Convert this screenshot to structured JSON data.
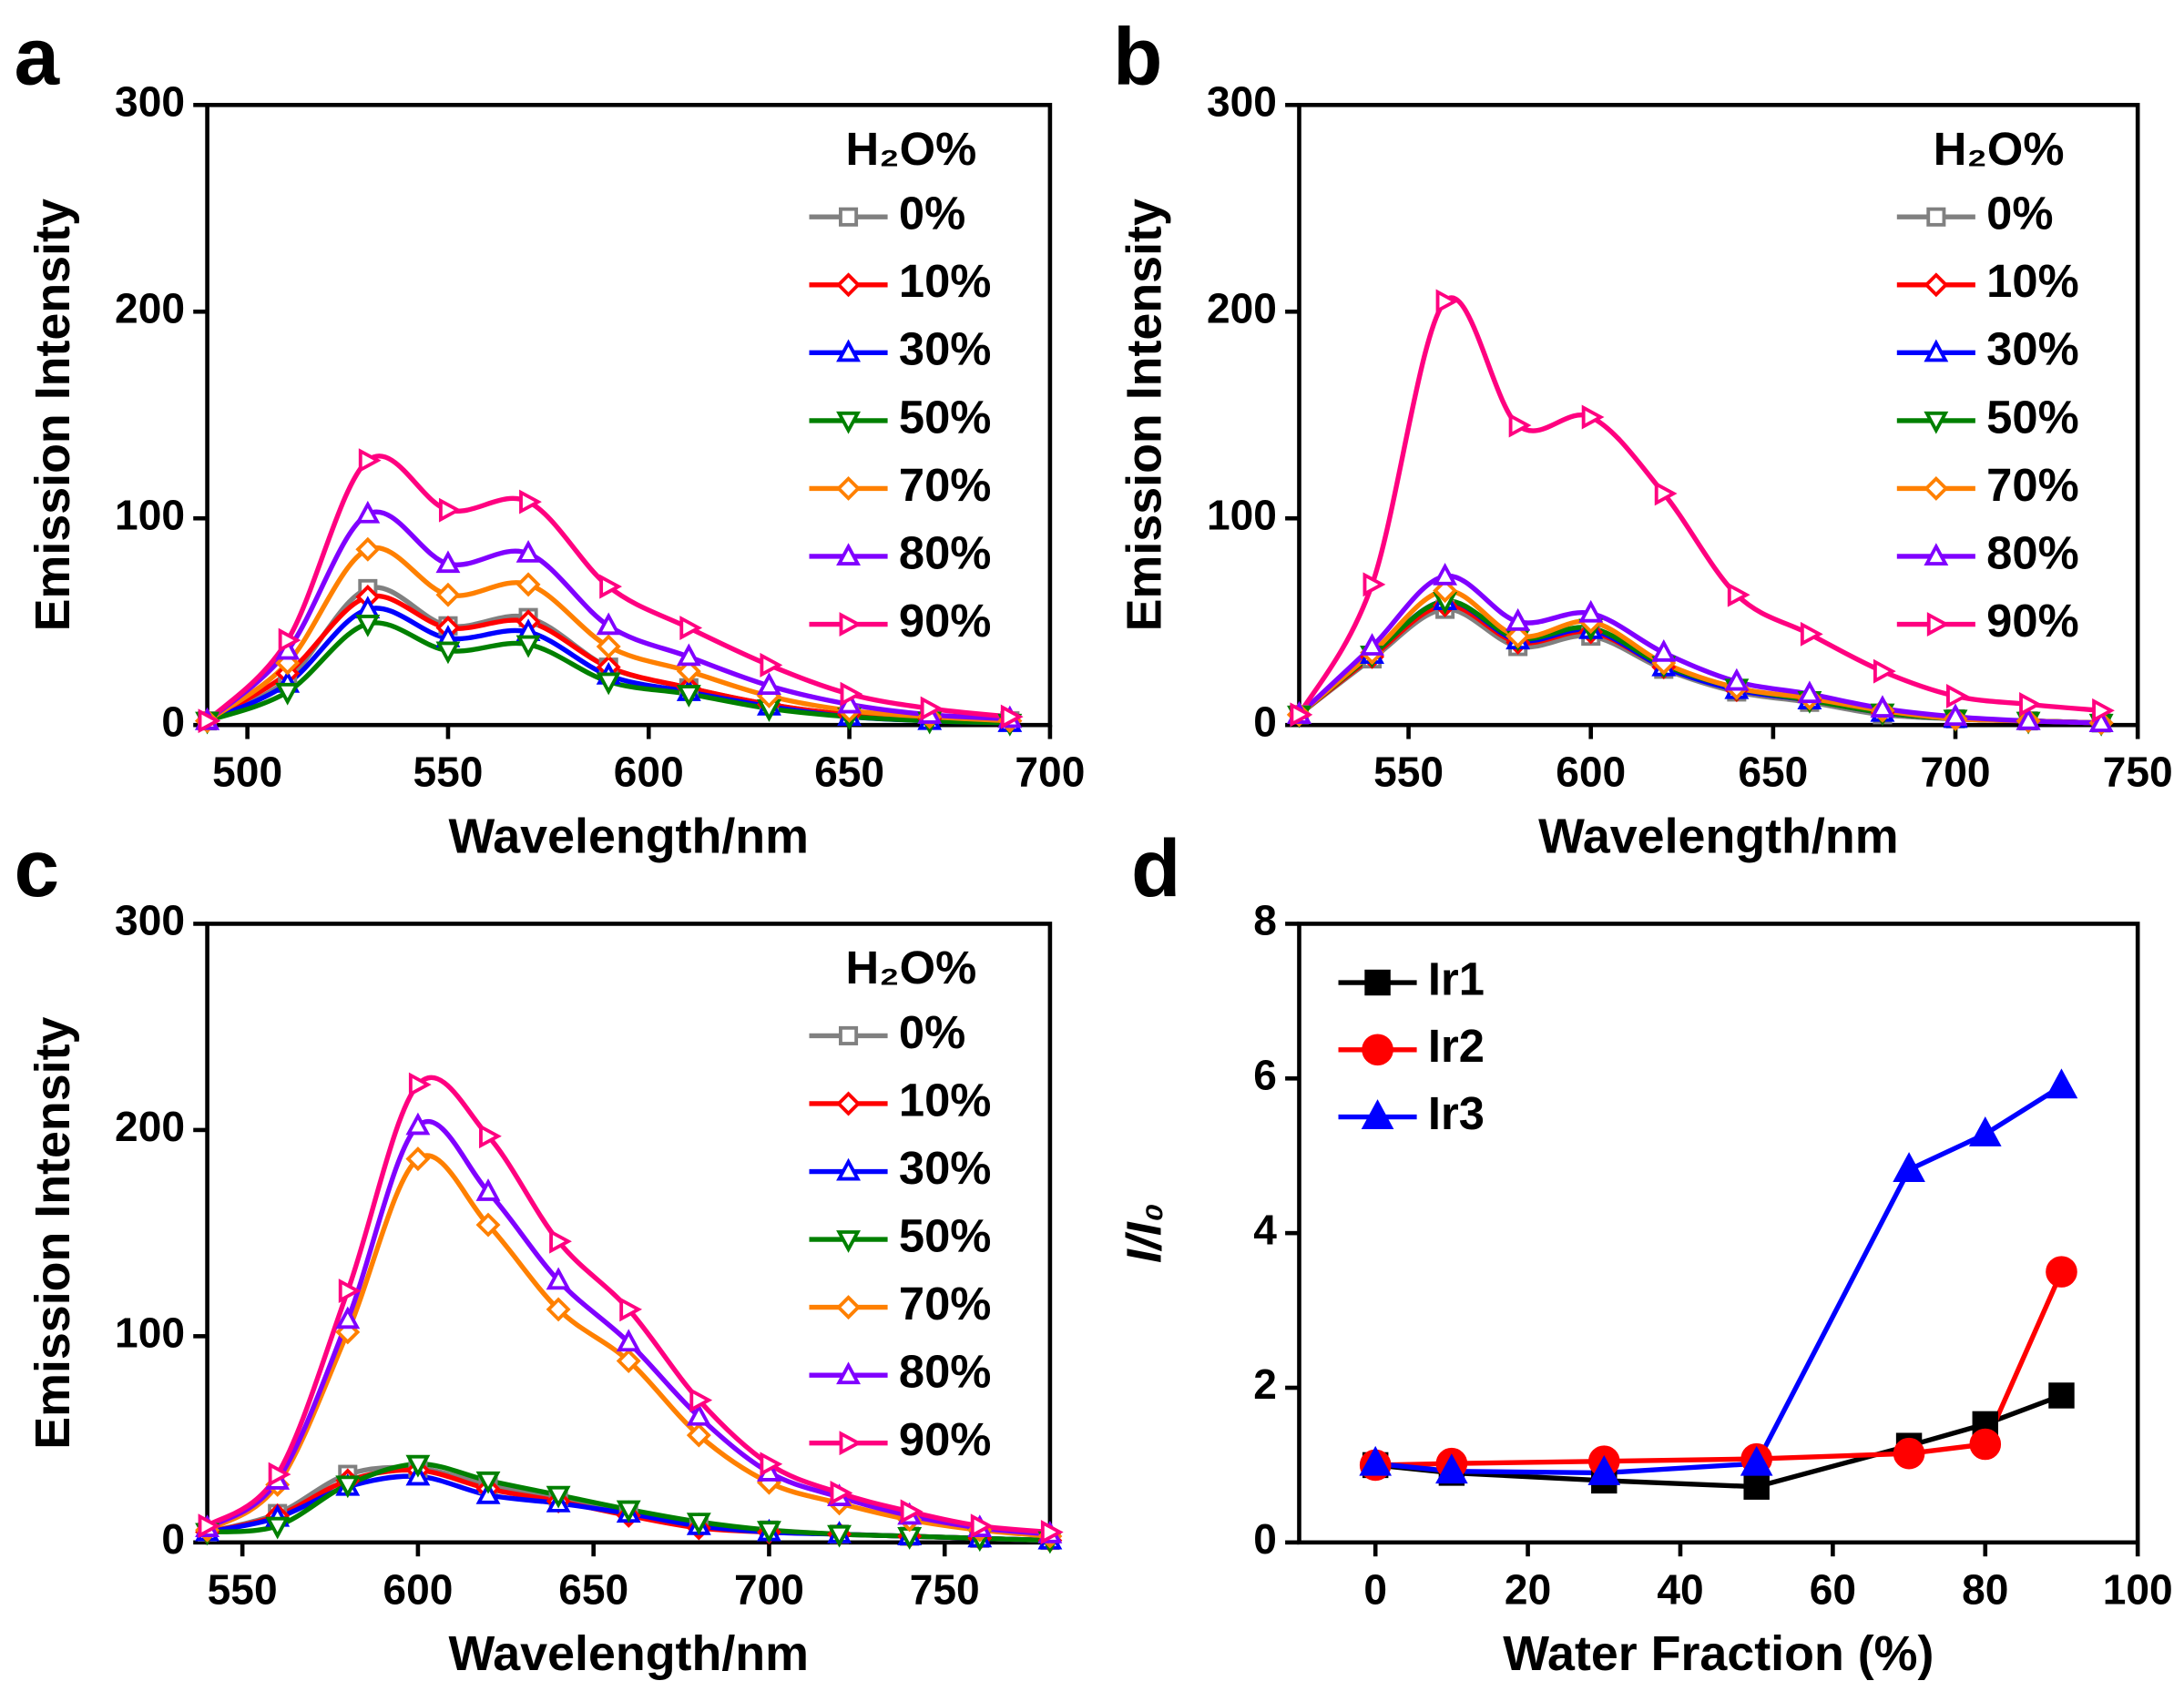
{
  "chart_data": [
    {
      "type": "line",
      "panel_label": "a",
      "x_label": "Wavelength/nm",
      "y_label": "Emission Intensity",
      "xlim": [
        490,
        700
      ],
      "ylim": [
        0,
        300
      ],
      "xticks": [
        500,
        550,
        600,
        650,
        700
      ],
      "yticks": [
        0,
        100,
        200,
        300
      ],
      "legend_title": "H₂O%",
      "legend": "upper right",
      "x": [
        490,
        510,
        530,
        550,
        570,
        590,
        610,
        630,
        650,
        670,
        690
      ],
      "series": [
        {
          "name": "0%",
          "color": "#808080",
          "marker": "square",
          "values": [
            2,
            22,
            66,
            48,
            52,
            28,
            18,
            10,
            5,
            3,
            2
          ]
        },
        {
          "name": "10%",
          "color": "#ff0000",
          "marker": "diamond",
          "values": [
            2,
            25,
            62,
            47,
            50,
            28,
            18,
            10,
            5,
            3,
            2
          ]
        },
        {
          "name": "30%",
          "color": "#0000ff",
          "marker": "triangle-up",
          "values": [
            2,
            20,
            56,
            42,
            45,
            24,
            16,
            9,
            4,
            2,
            1
          ]
        },
        {
          "name": "50%",
          "color": "#008000",
          "marker": "triangle-down",
          "values": [
            2,
            16,
            49,
            36,
            39,
            21,
            15,
            8,
            4,
            2,
            1
          ]
        },
        {
          "name": "70%",
          "color": "#ff8000",
          "marker": "diamond",
          "values": [
            2,
            30,
            85,
            63,
            68,
            38,
            26,
            14,
            7,
            4,
            2
          ]
        },
        {
          "name": "80%",
          "color": "#8000ff",
          "marker": "triangle-up",
          "values": [
            2,
            36,
            102,
            78,
            83,
            48,
            33,
            19,
            10,
            5,
            3
          ]
        },
        {
          "name": "90%",
          "color": "#ff0080",
          "marker": "triangle-right",
          "values": [
            2,
            41,
            128,
            104,
            108,
            67,
            47,
            29,
            15,
            8,
            4
          ]
        }
      ]
    },
    {
      "type": "line",
      "panel_label": "b",
      "x_label": "Wavelength/nm",
      "y_label": "Emission Intensity",
      "xlim": [
        520,
        750
      ],
      "ylim": [
        0,
        300
      ],
      "xticks": [
        550,
        600,
        650,
        700,
        750
      ],
      "yticks": [
        0,
        100,
        200,
        300
      ],
      "legend_title": "H₂O%",
      "legend": "upper right",
      "x": [
        520,
        540,
        560,
        580,
        600,
        620,
        640,
        660,
        680,
        700,
        720,
        740
      ],
      "series": [
        {
          "name": "0%",
          "color": "#808080",
          "marker": "square",
          "values": [
            5,
            32,
            56,
            38,
            43,
            27,
            16,
            11,
            5,
            3,
            2,
            1
          ]
        },
        {
          "name": "10%",
          "color": "#ff0000",
          "marker": "diamond",
          "values": [
            5,
            33,
            58,
            40,
            45,
            28,
            17,
            12,
            6,
            3,
            2,
            1
          ]
        },
        {
          "name": "30%",
          "color": "#0000ff",
          "marker": "triangle-up",
          "values": [
            5,
            34,
            60,
            41,
            46,
            28,
            17,
            12,
            6,
            3,
            2,
            1
          ]
        },
        {
          "name": "50%",
          "color": "#008000",
          "marker": "triangle-down",
          "values": [
            5,
            34,
            60,
            42,
            47,
            29,
            18,
            12,
            6,
            3,
            2,
            1
          ]
        },
        {
          "name": "70%",
          "color": "#ff8000",
          "marker": "diamond",
          "values": [
            5,
            35,
            65,
            43,
            50,
            30,
            18,
            13,
            7,
            3,
            2,
            1
          ]
        },
        {
          "name": "80%",
          "color": "#8000ff",
          "marker": "triangle-up",
          "values": [
            5,
            38,
            72,
            50,
            54,
            35,
            21,
            15,
            8,
            4,
            2,
            1
          ]
        },
        {
          "name": "90%",
          "color": "#ff0080",
          "marker": "triangle-right",
          "values": [
            5,
            68,
            205,
            145,
            149,
            112,
            63,
            44,
            26,
            14,
            10,
            7
          ]
        }
      ]
    },
    {
      "type": "line",
      "panel_label": "c",
      "x_label": "Wavelength/nm",
      "y_label": "Emission Intensity",
      "xlim": [
        540,
        780
      ],
      "ylim": [
        0,
        300
      ],
      "xticks": [
        550,
        600,
        650,
        700,
        750
      ],
      "yticks": [
        0,
        100,
        200,
        300
      ],
      "legend_title": "H₂O%",
      "legend": "upper right",
      "x": [
        540,
        560,
        580,
        600,
        620,
        640,
        660,
        680,
        700,
        720,
        740,
        760,
        780
      ],
      "series": [
        {
          "name": "0%",
          "color": "#808080",
          "marker": "square",
          "values": [
            5,
            14,
            33,
            36,
            28,
            22,
            15,
            9,
            6,
            4,
            3,
            2,
            1
          ]
        },
        {
          "name": "10%",
          "color": "#ff0000",
          "marker": "diamond",
          "values": [
            5,
            13,
            30,
            35,
            26,
            20,
            13,
            7,
            5,
            4,
            3,
            2,
            1
          ]
        },
        {
          "name": "30%",
          "color": "#0000ff",
          "marker": "triangle-up",
          "values": [
            5,
            12,
            27,
            32,
            23,
            19,
            14,
            8,
            5,
            4,
            3,
            2,
            1
          ]
        },
        {
          "name": "50%",
          "color": "#008000",
          "marker": "triangle-down",
          "values": [
            5,
            8,
            28,
            38,
            30,
            23,
            16,
            10,
            6,
            4,
            3,
            2,
            1
          ]
        },
        {
          "name": "70%",
          "color": "#ff8000",
          "marker": "diamond",
          "values": [
            6,
            28,
            102,
            186,
            154,
            113,
            88,
            52,
            29,
            19,
            11,
            6,
            3
          ]
        },
        {
          "name": "80%",
          "color": "#8000ff",
          "marker": "triangle-up",
          "values": [
            7,
            30,
            108,
            202,
            170,
            127,
            97,
            61,
            34,
            22,
            13,
            7,
            4
          ]
        },
        {
          "name": "90%",
          "color": "#ff0080",
          "marker": "triangle-right",
          "values": [
            8,
            33,
            122,
            222,
            197,
            146,
            113,
            69,
            38,
            24,
            15,
            8,
            5
          ]
        }
      ]
    },
    {
      "type": "line",
      "panel_label": "d",
      "x_label": "Water Fraction (%)",
      "y_label": "I/I₀",
      "xlim": [
        -10,
        100
      ],
      "ylim": [
        0,
        8
      ],
      "xticks": [
        0,
        20,
        40,
        60,
        80,
        100
      ],
      "yticks": [
        0,
        2,
        4,
        6,
        8
      ],
      "legend": "upper left",
      "straight": true,
      "filled": true,
      "x": [
        0,
        10,
        30,
        50,
        70,
        80,
        90
      ],
      "series": [
        {
          "name": "Ir1",
          "color": "#000000",
          "marker": "square",
          "values": [
            1.0,
            0.9,
            0.8,
            0.72,
            1.25,
            1.53,
            1.9
          ]
        },
        {
          "name": "Ir2",
          "color": "#ff0000",
          "marker": "circle",
          "values": [
            1.0,
            1.02,
            1.05,
            1.08,
            1.15,
            1.27,
            3.5
          ]
        },
        {
          "name": "Ir3",
          "color": "#0000ff",
          "marker": "triangle-up",
          "values": [
            1.02,
            0.92,
            0.9,
            1.02,
            4.82,
            5.28,
            5.9
          ]
        }
      ]
    }
  ]
}
